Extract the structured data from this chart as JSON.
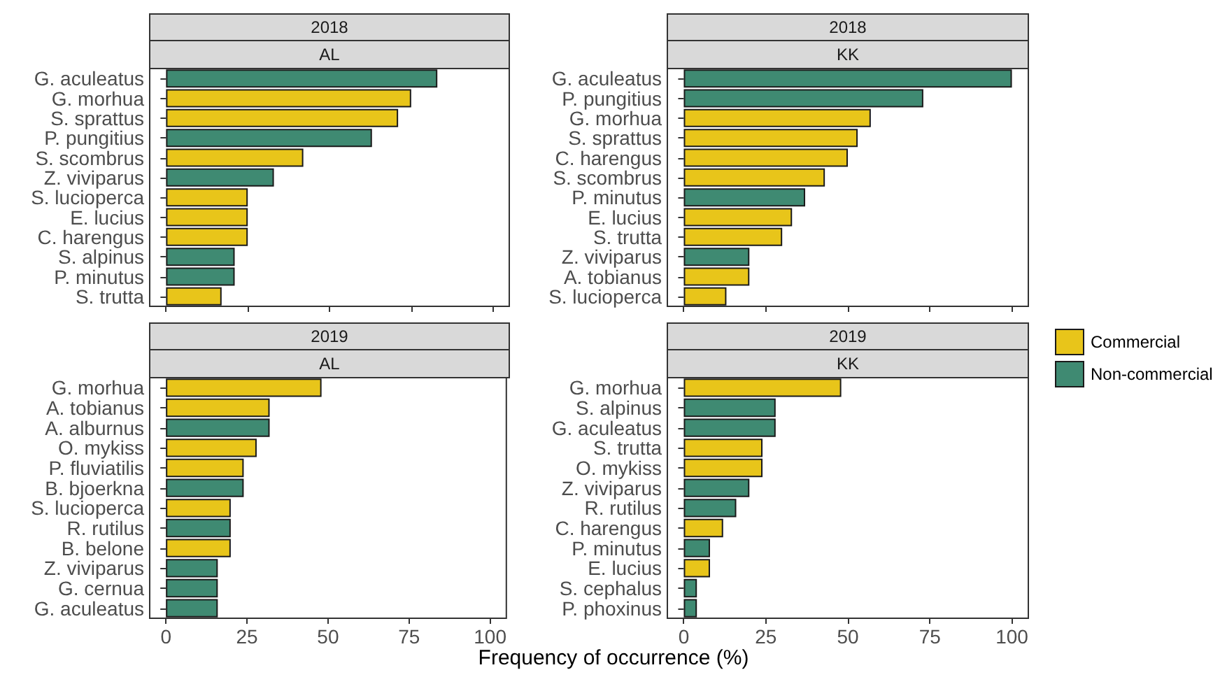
{
  "chart_data": [
    {
      "type": "bar",
      "orientation": "horizontal",
      "stacked": true,
      "title": "2018",
      "subtitle": "AL",
      "grid": false,
      "tick_labels": "y",
      "xlim": [
        -5,
        105
      ],
      "xticks": [
        0,
        25,
        50,
        75,
        100
      ],
      "categories": [
        "G. aculeatus",
        "G. morhua",
        "S. sprattus",
        "P. pungitius",
        "S. scombrus",
        "Z. viviparus",
        "S. lucioperca",
        "E. lucius",
        "C. harengus",
        "S. alpinus",
        "P. minutus",
        "S. trutta"
      ],
      "series": [
        {
          "color": "#e8c51a",
          "values": [
            null,
            75,
            71,
            null,
            42,
            null,
            25,
            25,
            25,
            null,
            null,
            17
          ]
        },
        {
          "color": "#3f8a72",
          "values": [
            83,
            null,
            null,
            63,
            null,
            33,
            null,
            null,
            null,
            21,
            21,
            null
          ]
        }
      ]
    },
    {
      "type": "bar",
      "orientation": "horizontal",
      "stacked": true,
      "title": "2018",
      "subtitle": "KK",
      "grid": false,
      "tick_labels": "y",
      "xlim": [
        -5,
        105
      ],
      "xticks": [
        0,
        25,
        50,
        75,
        100
      ],
      "categories": [
        "G. aculeatus",
        "P. pungitius",
        "G. morhua",
        "S. sprattus",
        "C. harengus",
        "S. scombrus",
        "P. minutus",
        "E. lucius",
        "S. trutta",
        "Z. viviparus",
        "A. tobianus",
        "S. lucioperca"
      ],
      "series": [
        {
          "color": "#e8c51a",
          "values": [
            null,
            null,
            57,
            53,
            50,
            43,
            null,
            33,
            30,
            null,
            20,
            13
          ]
        },
        {
          "color": "#3f8a72",
          "values": [
            100,
            73,
            null,
            null,
            null,
            null,
            37,
            null,
            null,
            20,
            null,
            null
          ]
        }
      ]
    },
    {
      "type": "bar",
      "orientation": "horizontal",
      "stacked": true,
      "title": "2019",
      "subtitle": "AL",
      "grid": false,
      "xlabel": "Frequency of occurrence (%)",
      "xlim": [
        -5,
        105
      ],
      "xticks": [
        0,
        25,
        50,
        75,
        100
      ],
      "categories": [
        "G. morhua",
        "A. tobianus",
        "A. alburnus",
        "O. mykiss",
        "P. fluviatilis",
        "B. bjoerkna",
        "S. lucioperca",
        "R. rutilus",
        "B. belone",
        "Z. viviparus",
        "G. cernua",
        "G. aculeatus"
      ],
      "series": [
        {
          "color": "#e8c51a",
          "values": [
            48,
            32,
            null,
            28,
            24,
            null,
            20,
            null,
            20,
            null,
            null,
            null
          ]
        },
        {
          "color": "#3f8a72",
          "values": [
            null,
            null,
            32,
            null,
            null,
            24,
            null,
            20,
            null,
            16,
            16,
            16
          ]
        }
      ]
    },
    {
      "type": "bar",
      "orientation": "horizontal",
      "stacked": true,
      "title": "2019",
      "subtitle": "KK",
      "grid": false,
      "legend": "right",
      "xlim": [
        -5,
        105
      ],
      "xticks": [
        0,
        25,
        50,
        75,
        100
      ],
      "categories": [
        "G. morhua",
        "S. alpinus",
        "G. aculeatus",
        "S. trutta",
        "O. mykiss",
        "Z. viviparus",
        "R. rutilus",
        "C. harengus",
        "P. minutus",
        "E. lucius",
        "S. cephalus",
        "P. phoxinus"
      ],
      "series": [
        {
          "name": "Commercial",
          "color": "#e8c51a",
          "values": [
            48,
            null,
            null,
            24,
            24,
            null,
            null,
            12,
            null,
            8,
            null,
            null
          ]
        },
        {
          "name": "Non-commercial",
          "color": "#3f8a72",
          "values": [
            null,
            28,
            28,
            null,
            null,
            20,
            16,
            null,
            8,
            null,
            4,
            4
          ]
        }
      ]
    }
  ]
}
